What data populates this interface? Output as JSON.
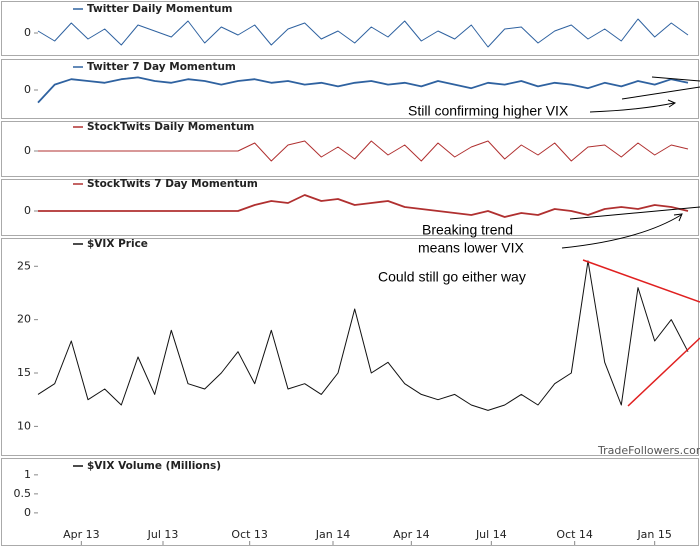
{
  "chart_data": [
    {
      "type": "line",
      "title": "Twitter Daily Momentum",
      "ylim": [
        -1,
        1
      ],
      "yticks": [
        0
      ],
      "x": [
        0,
        1,
        2,
        3,
        4,
        5,
        6,
        7,
        8,
        9,
        10,
        11,
        12,
        13,
        14,
        15,
        16,
        17,
        18,
        19,
        20,
        21,
        22,
        23,
        24,
        25,
        26,
        27,
        28,
        29,
        30,
        31,
        32,
        33,
        34,
        35,
        36,
        37,
        38,
        39
      ],
      "series": [
        {
          "color": "#2f62a0",
          "values": [
            0.1,
            -0.4,
            0.5,
            -0.3,
            0.2,
            -0.6,
            0.4,
            0.1,
            -0.2,
            0.6,
            -0.5,
            0.3,
            -0.1,
            0.4,
            -0.6,
            0.2,
            0.5,
            -0.3,
            0.1,
            -0.5,
            0.3,
            -0.2,
            0.6,
            -0.4,
            0.1,
            -0.3,
            0.4,
            -0.7,
            0.2,
            0.3,
            -0.5,
            0.1,
            0.4,
            -0.3,
            0.2,
            -0.4,
            0.7,
            -0.2,
            0.5,
            -0.1
          ]
        }
      ]
    },
    {
      "type": "line",
      "title": "Twitter 7 Day Momentum",
      "ylim": [
        -1,
        1
      ],
      "yticks": [
        0
      ],
      "x": [
        0,
        1,
        2,
        3,
        4,
        5,
        6,
        7,
        8,
        9,
        10,
        11,
        12,
        13,
        14,
        15,
        16,
        17,
        18,
        19,
        20,
        21,
        22,
        23,
        24,
        25,
        26,
        27,
        28,
        29,
        30,
        31,
        32,
        33,
        34,
        35,
        36,
        37,
        38,
        39
      ],
      "series": [
        {
          "color": "#2f62a0",
          "values": [
            -0.7,
            0.3,
            0.6,
            0.5,
            0.4,
            0.6,
            0.7,
            0.5,
            0.4,
            0.6,
            0.5,
            0.3,
            0.5,
            0.6,
            0.4,
            0.5,
            0.3,
            0.4,
            0.2,
            0.4,
            0.5,
            0.3,
            0.4,
            0.2,
            0.5,
            0.3,
            0.1,
            0.4,
            0.3,
            0.5,
            0.2,
            0.4,
            0.3,
            0.1,
            0.4,
            0.2,
            0.5,
            0.3,
            0.6,
            0.4
          ]
        }
      ]
    },
    {
      "type": "line",
      "title": "StockTwits Daily Momentum",
      "ylim": [
        -1,
        1
      ],
      "yticks": [
        0
      ],
      "x": [
        0,
        1,
        2,
        3,
        4,
        5,
        6,
        7,
        8,
        9,
        10,
        11,
        12,
        13,
        14,
        15,
        16,
        17,
        18,
        19,
        20,
        21,
        22,
        23,
        24,
        25,
        26,
        27,
        28,
        29,
        30,
        31,
        32,
        33,
        34,
        35,
        36,
        37,
        38,
        39
      ],
      "series": [
        {
          "color": "#b03030",
          "values": [
            0,
            0,
            0,
            0,
            0,
            0,
            0,
            0,
            0,
            0,
            0,
            0,
            0,
            0.4,
            -0.5,
            0.3,
            0.5,
            -0.3,
            0.2,
            -0.4,
            0.5,
            -0.2,
            0.3,
            -0.5,
            0.4,
            -0.3,
            0.2,
            0.5,
            -0.4,
            0.3,
            -0.2,
            0.4,
            -0.5,
            0.2,
            0.3,
            -0.3,
            0.4,
            -0.2,
            0.3,
            0.1
          ]
        }
      ]
    },
    {
      "type": "line",
      "title": "StockTwits 7 Day Momentum",
      "ylim": [
        -1,
        1
      ],
      "yticks": [
        0
      ],
      "x": [
        0,
        1,
        2,
        3,
        4,
        5,
        6,
        7,
        8,
        9,
        10,
        11,
        12,
        13,
        14,
        15,
        16,
        17,
        18,
        19,
        20,
        21,
        22,
        23,
        24,
        25,
        26,
        27,
        28,
        29,
        30,
        31,
        32,
        33,
        34,
        35,
        36,
        37,
        38,
        39
      ],
      "series": [
        {
          "color": "#b03030",
          "values": [
            0,
            0,
            0,
            0,
            0,
            0,
            0,
            0,
            0,
            0,
            0,
            0,
            0,
            0.3,
            0.5,
            0.4,
            0.8,
            0.5,
            0.6,
            0.3,
            0.4,
            0.5,
            0.2,
            0.1,
            0.0,
            -0.1,
            -0.2,
            0.0,
            -0.3,
            -0.1,
            -0.2,
            0.1,
            0.0,
            -0.2,
            0.1,
            0.2,
            0.1,
            0.3,
            0.2,
            0.0
          ]
        }
      ]
    },
    {
      "type": "line",
      "title": "$VIX Price",
      "ylim": [
        7.6,
        26.9
      ],
      "yticks": [
        10,
        15,
        20,
        25
      ],
      "x": [
        0,
        1,
        2,
        3,
        4,
        5,
        6,
        7,
        8,
        9,
        10,
        11,
        12,
        13,
        14,
        15,
        16,
        17,
        18,
        19,
        20,
        21,
        22,
        23,
        24,
        25,
        26,
        27,
        28,
        29,
        30,
        31,
        32,
        33,
        34,
        35,
        36,
        37,
        38,
        39
      ],
      "series": [
        {
          "color": "#111111",
          "values": [
            13,
            14,
            18,
            12.5,
            13.5,
            12,
            16.5,
            13,
            19,
            14,
            13.5,
            15,
            17,
            14,
            19,
            13.5,
            14,
            13,
            15,
            21,
            15,
            16,
            14,
            13,
            12.5,
            13,
            12,
            11.5,
            12,
            13,
            12,
            14,
            15,
            25.5,
            16,
            12,
            23,
            18,
            20,
            17
          ]
        }
      ]
    },
    {
      "type": "line",
      "title": "$VIX Volume (Millions)",
      "ylim": [
        -0.45,
        1.18
      ],
      "yticks": [
        0,
        {
          "value": 0.5,
          "label": "0.5"
        },
        1
      ],
      "xlim": [
        0,
        39
      ],
      "xticks": [
        {
          "value": 2.6,
          "label": "Apr 13"
        },
        {
          "value": 7.5,
          "label": "Jul 13"
        },
        {
          "value": 12.7,
          "label": "Oct 13"
        },
        {
          "value": 17.7,
          "label": "Jan 14"
        },
        {
          "value": 22.4,
          "label": "Apr 14"
        },
        {
          "value": 27.2,
          "label": "Jul 14"
        },
        {
          "value": 32.2,
          "label": "Oct 14"
        },
        {
          "value": 37.0,
          "label": "Jan 15"
        }
      ],
      "series": []
    }
  ],
  "annotations": [
    "Still confirming higher VIX",
    "Breaking trend",
    "means lower VIX",
    "Could still go either way",
    "TradeFollowers.com"
  ]
}
